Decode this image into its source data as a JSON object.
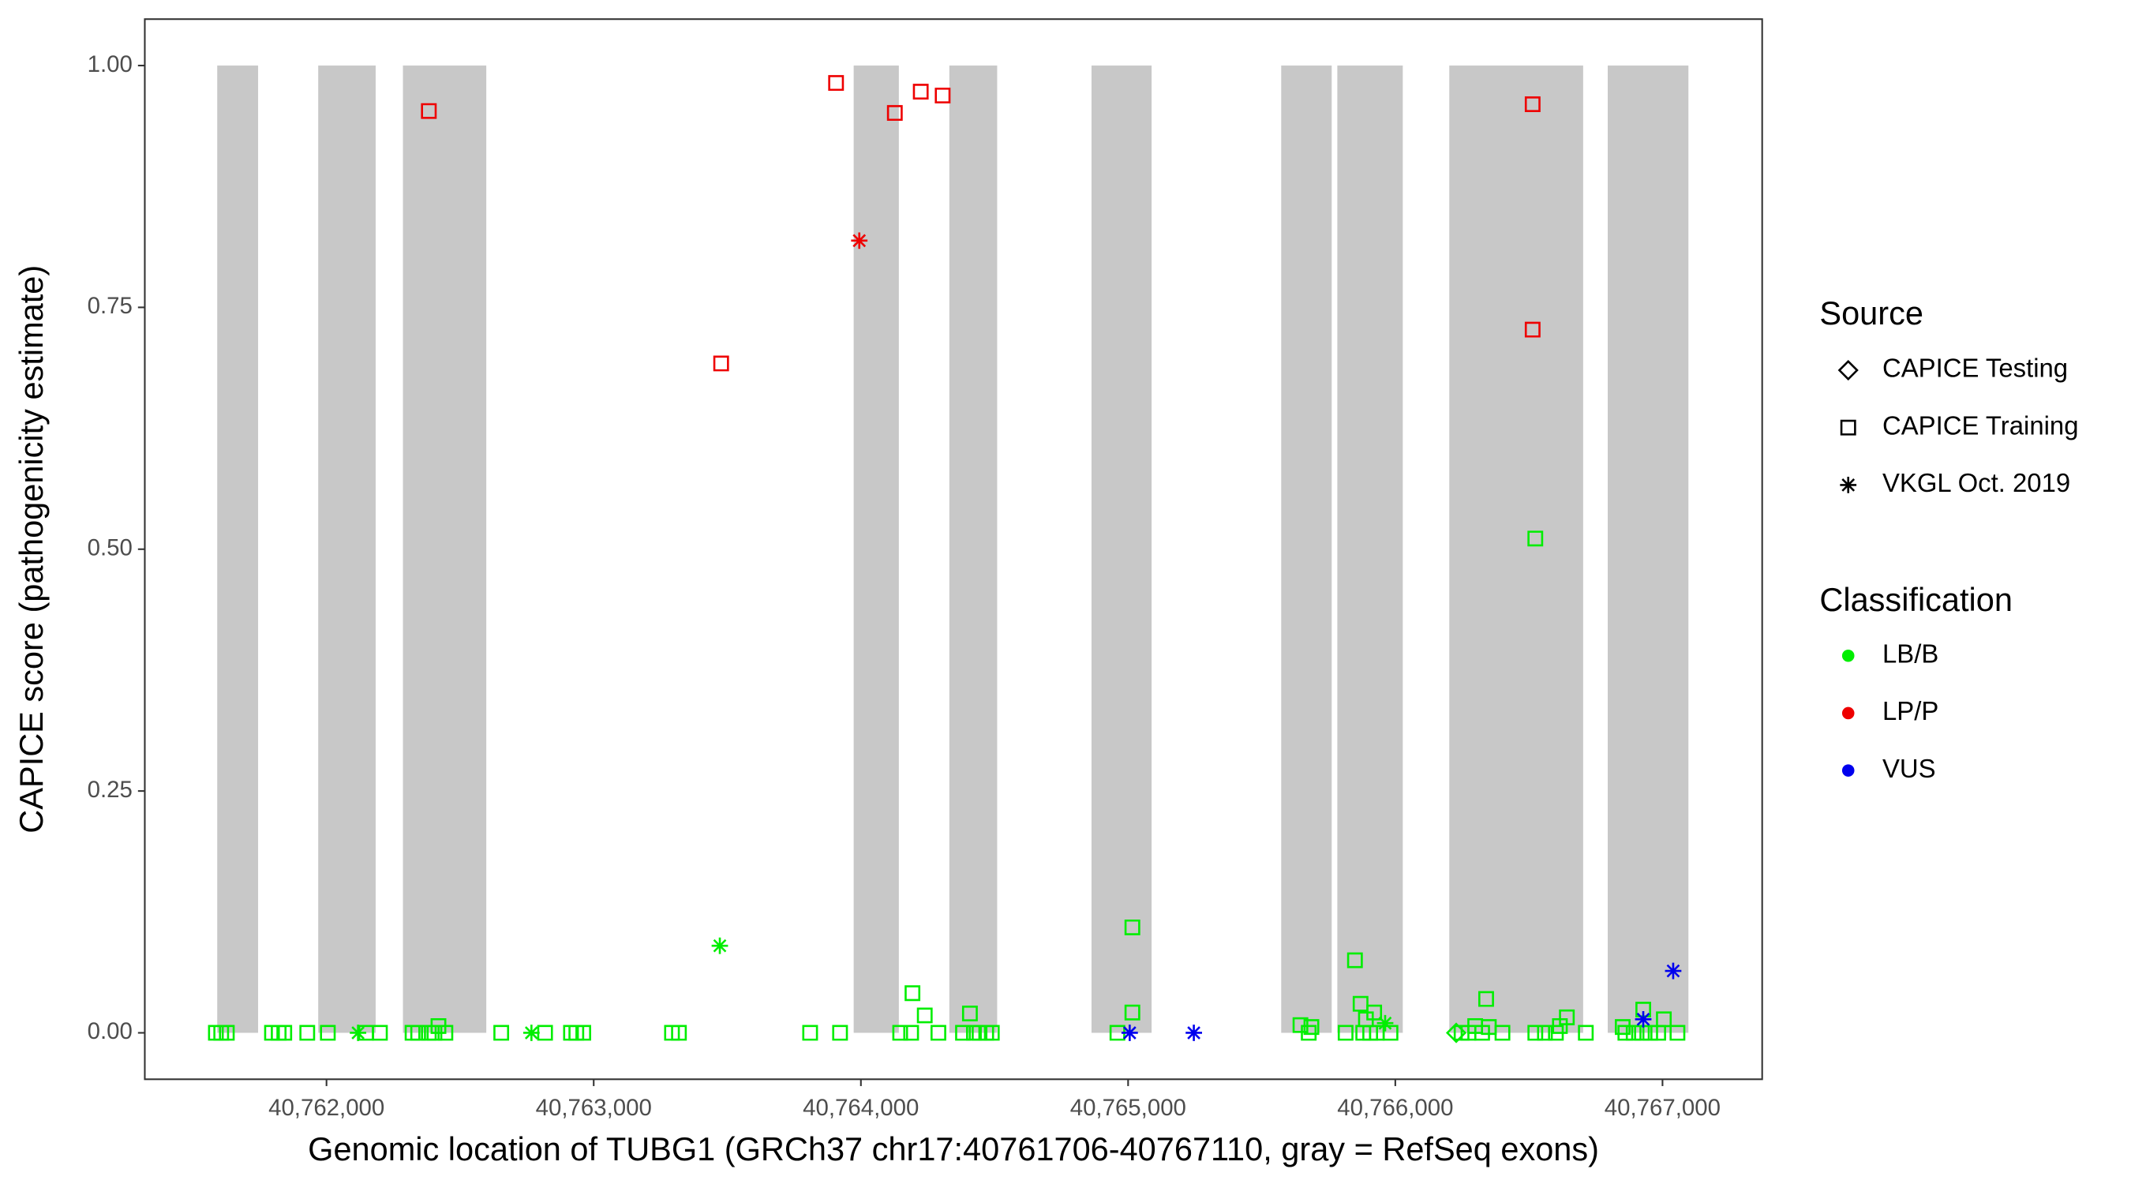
{
  "chart_data": {
    "type": "scatter",
    "x_label": "Genomic location of TUBG1 (GRCh37 chr17:40761706-40767110, gray = RefSeq exons)",
    "y_label": "CAPICE score (pathogenicity estimate)",
    "xlim": [
      40761320,
      40767373
    ],
    "ylim": [
      -0.048,
      1.048
    ],
    "xticks": [
      {
        "value": 40762000,
        "label": "40,762,000"
      },
      {
        "value": 40763000,
        "label": "40,763,000"
      },
      {
        "value": 40764000,
        "label": "40,764,000"
      },
      {
        "value": 40765000,
        "label": "40,765,000"
      },
      {
        "value": 40766000,
        "label": "40,766,000"
      },
      {
        "value": 40767000,
        "label": "40,767,000"
      }
    ],
    "yticks": [
      {
        "value": 0,
        "label": "0.00"
      },
      {
        "value": 0.25,
        "label": "0.25"
      },
      {
        "value": 0.5,
        "label": "0.50"
      },
      {
        "value": 0.75,
        "label": "0.75"
      },
      {
        "value": 1,
        "label": "1.00"
      }
    ],
    "grid": false,
    "exon_color": "#c8c8c8",
    "exons": [
      {
        "start": 40761591,
        "end": 40761744
      },
      {
        "start": 40761969,
        "end": 40762184
      },
      {
        "start": 40762286,
        "end": 40762598
      },
      {
        "start": 40763973,
        "end": 40764142
      },
      {
        "start": 40764331,
        "end": 40764510
      },
      {
        "start": 40764863,
        "end": 40765088
      },
      {
        "start": 40765573,
        "end": 40765762
      },
      {
        "start": 40765783,
        "end": 40766028
      },
      {
        "start": 40766202,
        "end": 40766703
      },
      {
        "start": 40766795,
        "end": 40767097
      }
    ],
    "source_legend": {
      "title": "Source",
      "items": [
        {
          "name": "CAPICE Testing",
          "shape": "diamond"
        },
        {
          "name": "CAPICE Training",
          "shape": "square"
        },
        {
          "name": "VKGL Oct. 2019",
          "shape": "asterisk"
        }
      ]
    },
    "classification_legend": {
      "title": "Classification",
      "items": [
        {
          "name": "LB/B",
          "color": "#00ee00"
        },
        {
          "name": "LP/P",
          "color": "#ee0000"
        },
        {
          "name": "VUS",
          "color": "#0000ee"
        }
      ]
    },
    "series": [
      {
        "source": "CAPICE Training",
        "classification": "LB/B",
        "x": [
          40761586,
          40761606,
          40761627,
          40761796,
          40761821,
          40761842,
          40761928,
          40762005,
          40762148,
          40762200,
          40762322,
          40762343,
          40762383,
          40762404,
          40762445,
          40762654,
          40762818,
          40762915,
          40762935,
          40762961,
          40763293,
          40763319,
          40763810,
          40763922,
          40764147,
          40764188,
          40764290,
          40764382,
          40764423,
          40764444,
          40764469,
          40764490,
          40764960,
          40765676,
          40765814,
          40765880,
          40765906,
          40765931,
          40765982,
          40766248,
          40766274,
          40766325,
          40766401,
          40766524,
          40766560,
          40766601,
          40766713,
          40766861,
          40766892,
          40766923,
          40766954,
          40766984,
          40767056,
          40762419,
          40765016,
          40765016,
          40765849,
          40765870,
          40765921,
          40765890,
          40765645,
          40765686,
          40766524,
          40764193,
          40764239,
          40764408,
          40766340,
          40766642,
          40766616,
          40766299,
          40766350,
          40766928,
          40767005,
          40766851
        ],
        "y": [
          0,
          0,
          0,
          0,
          0,
          0,
          0,
          0,
          0,
          0,
          0,
          0,
          0,
          0,
          0,
          0,
          0,
          0,
          0,
          0,
          0,
          0,
          0,
          0,
          0,
          0,
          0,
          0,
          0,
          0,
          0,
          0,
          0,
          0,
          0,
          0,
          0,
          0,
          0,
          0,
          0,
          0,
          0,
          0,
          0,
          0,
          0,
          0,
          0,
          0,
          0,
          0,
          0,
          0.007,
          0.109,
          0.021,
          0.075,
          0.03,
          0.021,
          0.014,
          0.008,
          0.006,
          0.511,
          0.041,
          0.018,
          0.02,
          0.035,
          0.016,
          0.007,
          0.007,
          0.006,
          0.024,
          0.014,
          0.006
        ]
      },
      {
        "source": "CAPICE Training",
        "classification": "LP/P",
        "x": [
          40762383,
          40763477,
          40763907,
          40764127,
          40764224,
          40764306,
          40766514,
          40766514
        ],
        "y": [
          0.953,
          0.692,
          0.982,
          0.951,
          0.973,
          0.969,
          0.96,
          0.727
        ]
      },
      {
        "source": "CAPICE Testing",
        "classification": "LB/B",
        "x": [
          40766228
        ],
        "y": [
          0
        ]
      },
      {
        "source": "VKGL Oct. 2019",
        "classification": "LB/B",
        "x": [
          40763472,
          40762118,
          40762767,
          40765962
        ],
        "y": [
          0.09,
          0,
          0,
          0.01
        ]
      },
      {
        "source": "VKGL Oct. 2019",
        "classification": "LP/P",
        "x": [
          40763994
        ],
        "y": [
          0.819
        ]
      },
      {
        "source": "VKGL Oct. 2019",
        "classification": "VUS",
        "x": [
          40765006,
          40765246,
          40766928,
          40767040
        ],
        "y": [
          0,
          0,
          0.014,
          0.064
        ]
      }
    ]
  }
}
